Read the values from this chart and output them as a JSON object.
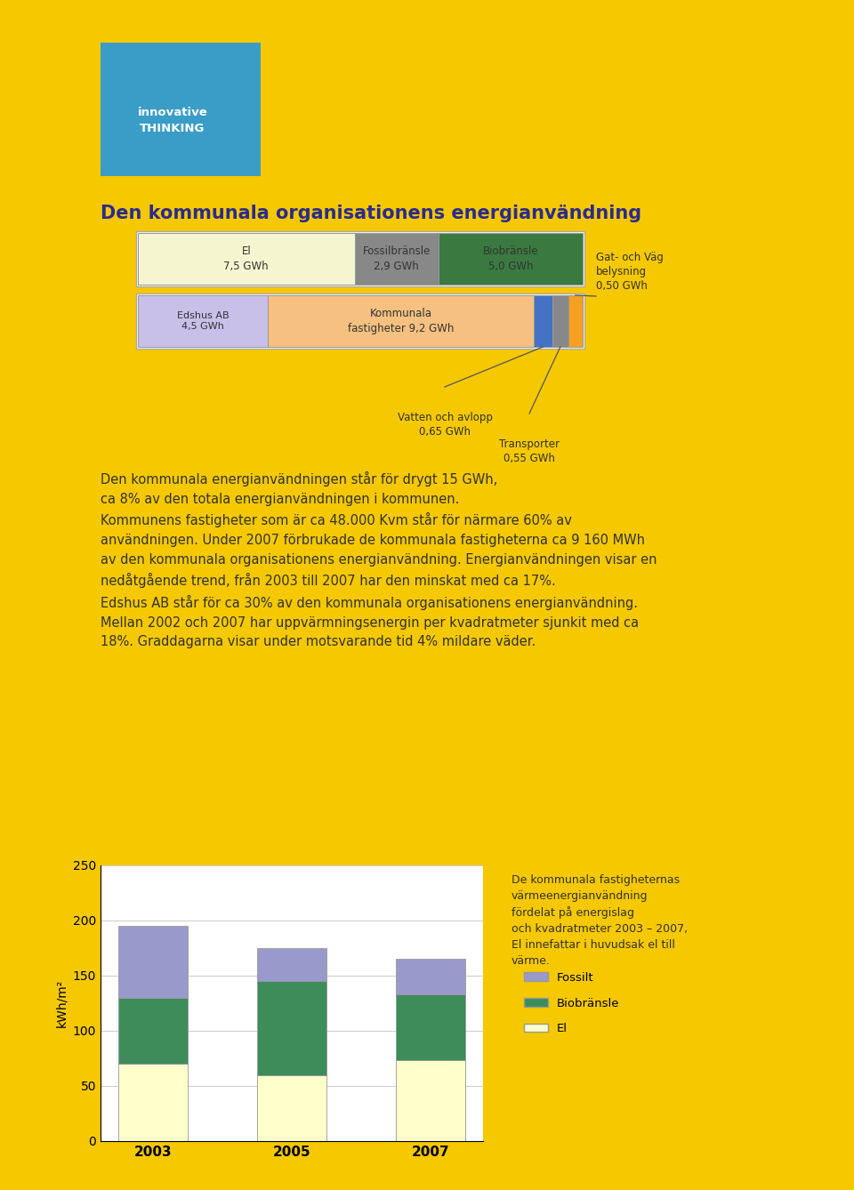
{
  "bg_color": "#F5C800",
  "title": "Den kommunala organisationens energianvändning",
  "title_color": "#2B2B8C",
  "title_fontsize": 15,
  "bar1_values": [
    7.5,
    2.9,
    5.0
  ],
  "bar1_colors": [
    "#F5F5D0",
    "#888888",
    "#3A7A40"
  ],
  "bar1_labels": [
    "El\n7,5 GWh",
    "Fossilbränsle\n2,9 GWh",
    "Biobränsle\n5,0 GWh"
  ],
  "bar2_values": [
    4.5,
    9.2,
    0.65,
    0.55,
    0.5
  ],
  "bar2_colors": [
    "#C8C0E8",
    "#F5C080",
    "#4472C4",
    "#888888",
    "#F5A020"
  ],
  "bar2_labels": [
    "Edshus AB\n4,5 GWh",
    "Kommunala\nfastigheter 9,2 GWh",
    "Vatten och avlopp\n0,65 GWh",
    "Transporter\n0,55 GWh",
    "Gat- och Väg\nbelysning\n0,50 GWh"
  ],
  "body_text": "Den kommunala energianvändningen står för drygt 15 GWh,\nca 8% av den totala energianvändningen i kommunen.\nKommunens fastigheter som är ca 48.000 Kvm står för närmare 60% av\nanvändningen. Under 2007 förbrukade de kommunala fastigheterna ca 9 160 MWh\nav den kommunala organisationens energianvändning. Energianvändningen visar en\nnedåtgående trend, från 2003 till 2007 har den minskat med ca 17%.\nEdshus AB står för ca 30% av den kommunala organisationens energianvändning.\nMellan 2002 och 2007 har uppvärmningsenergin per kvadratmeter sjunkit med ca\n18%. Graddagarna visar under motsvarande tid 4% mildare väder.",
  "side_text": "De kommunala fastigheternas\nvärmeenergianvändning\nfördelat på energislag\noch kvadratmeter 2003 – 2007,\nEl innefattar i huvudsak el till\nvärme.",
  "chart_years": [
    "2003",
    "2005",
    "2007"
  ],
  "chart_el": [
    70,
    60,
    73
  ],
  "chart_bio": [
    60,
    85,
    60
  ],
  "chart_fossil": [
    65,
    30,
    32
  ],
  "chart_el_color": "#FFFFCC",
  "chart_bio_color": "#3D8C5A",
  "chart_fossil_color": "#9999CC",
  "chart_ylabel": "kWh/m²",
  "chart_ylim": [
    0,
    250
  ],
  "logo_color": "#3A9DC8"
}
